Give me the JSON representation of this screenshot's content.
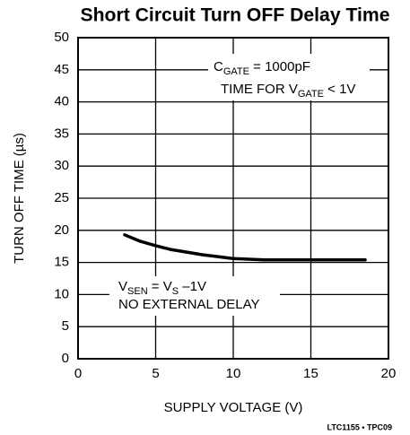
{
  "chart_data": {
    "type": "line",
    "title": "Short Circuit Turn OFF Delay Time",
    "x_label": "SUPPLY VOLTAGE (V)",
    "y_label": "TURN OFF TIME (µs)",
    "footnote": "LTC1155 • TPC09",
    "x": [
      3,
      4,
      5,
      6,
      7,
      8,
      9,
      10,
      11,
      12,
      14,
      16,
      18.5
    ],
    "series": [
      {
        "color": "#000000",
        "values": [
          19.3,
          18.3,
          17.6,
          17.0,
          16.6,
          16.2,
          15.9,
          15.6,
          15.5,
          15.4,
          15.4,
          15.4,
          15.4
        ]
      }
    ],
    "xlim": [
      0,
      20
    ],
    "xticks": [
      0,
      5,
      10,
      15,
      20
    ],
    "ylim": [
      0,
      50
    ],
    "yticks": [
      0,
      5,
      10,
      15,
      20,
      25,
      30,
      35,
      40,
      45,
      50
    ],
    "grid": true,
    "annotations": [
      {
        "lines": [
          [
            {
              "text": "C"
            },
            {
              "text": "GATE",
              "sub": true
            },
            {
              "text": " = 1000pF"
            }
          ],
          [
            {
              "text": "TIME FOR V"
            },
            {
              "text": "GATE",
              "sub": true
            },
            {
              "text": " < 1V"
            }
          ]
        ]
      },
      {
        "lines": [
          [
            {
              "text": "V"
            },
            {
              "text": "SEN",
              "sub": true
            },
            {
              "text": " = V"
            },
            {
              "text": "S",
              "sub": true
            },
            {
              "text": " –1V"
            }
          ],
          [
            {
              "text": "NO EXTERNAL DELAY"
            }
          ]
        ]
      }
    ]
  }
}
